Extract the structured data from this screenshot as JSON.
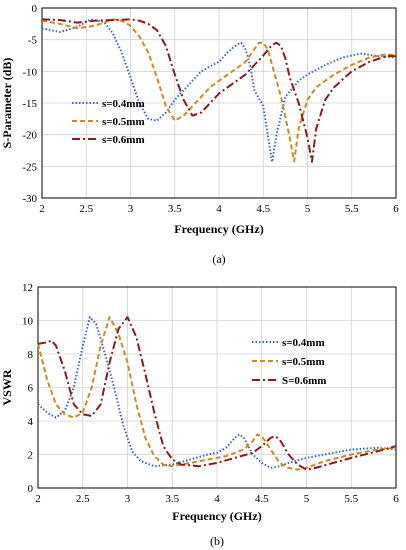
{
  "chart_data": [
    {
      "type": "line",
      "caption": "(a)",
      "title": "",
      "xlabel": "Frequency (GHz)",
      "ylabel": "S-Parameter (dB)",
      "xlim": [
        2,
        6
      ],
      "ylim": [
        -30,
        0
      ],
      "xticks": [
        "2",
        "2.5",
        "3",
        "3.5",
        "4",
        "4.5",
        "5",
        "5.5",
        "6"
      ],
      "yticks": [
        "0",
        "-5",
        "-10",
        "-15",
        "-20",
        "-25",
        "-30"
      ],
      "grid": true,
      "legend_position": "lower-left",
      "series": [
        {
          "name": "s=0.4mm",
          "color": "#3366cc",
          "dash": "dotted",
          "x": [
            2.0,
            2.2,
            2.4,
            2.55,
            2.7,
            2.8,
            2.9,
            3.0,
            3.1,
            3.2,
            3.3,
            3.4,
            3.5,
            3.6,
            3.7,
            3.8,
            3.9,
            4.0,
            4.1,
            4.2,
            4.25,
            4.3,
            4.35,
            4.4,
            4.5,
            4.55,
            4.6,
            4.65,
            4.75,
            4.9,
            5.0,
            5.2,
            5.4,
            5.6,
            5.8,
            6.0
          ],
          "y": [
            -3.2,
            -3.8,
            -3.0,
            -1.8,
            -2.2,
            -4.0,
            -7.0,
            -11.0,
            -15.0,
            -17.5,
            -17.8,
            -16.5,
            -14.5,
            -13.0,
            -11.5,
            -10.0,
            -9.2,
            -8.5,
            -7.0,
            -5.8,
            -5.5,
            -6.5,
            -9.0,
            -13.0,
            -15.5,
            -20.0,
            -24.3,
            -20.0,
            -14.0,
            -11.5,
            -10.5,
            -9.0,
            -7.8,
            -7.2,
            -7.6,
            -7.8
          ]
        },
        {
          "name": "s=0.5mm",
          "color": "#cc8a1e",
          "dash": "dashed",
          "x": [
            2.0,
            2.2,
            2.4,
            2.6,
            2.8,
            2.9,
            3.0,
            3.1,
            3.2,
            3.3,
            3.4,
            3.5,
            3.6,
            3.7,
            3.8,
            3.9,
            4.0,
            4.1,
            4.2,
            4.3,
            4.4,
            4.45,
            4.5,
            4.55,
            4.6,
            4.7,
            4.8,
            4.85,
            4.9,
            5.0,
            5.1,
            5.3,
            5.5,
            5.7,
            5.9,
            6.0
          ],
          "y": [
            -2.0,
            -2.5,
            -3.2,
            -2.8,
            -1.8,
            -2.0,
            -2.8,
            -4.5,
            -7.0,
            -11.0,
            -15.5,
            -17.8,
            -17.0,
            -15.5,
            -14.0,
            -12.5,
            -11.5,
            -10.5,
            -9.5,
            -8.5,
            -6.5,
            -5.5,
            -5.5,
            -6.5,
            -9.0,
            -14.0,
            -20.5,
            -24.2,
            -19.0,
            -14.5,
            -12.5,
            -10.5,
            -9.0,
            -7.8,
            -7.3,
            -7.5
          ]
        },
        {
          "name": "s=0.6mm",
          "color": "#8b1a1a",
          "dash": "dashdot",
          "x": [
            2.0,
            2.2,
            2.4,
            2.6,
            2.8,
            3.0,
            3.1,
            3.2,
            3.3,
            3.4,
            3.5,
            3.6,
            3.7,
            3.8,
            3.9,
            4.0,
            4.1,
            4.2,
            4.3,
            4.4,
            4.5,
            4.6,
            4.65,
            4.7,
            4.75,
            4.8,
            4.9,
            5.0,
            5.05,
            5.1,
            5.2,
            5.3,
            5.5,
            5.7,
            5.9,
            6.0
          ],
          "y": [
            -1.8,
            -1.9,
            -2.3,
            -2.0,
            -1.9,
            -1.8,
            -2.0,
            -2.5,
            -3.5,
            -6.0,
            -10.5,
            -14.5,
            -17.0,
            -16.5,
            -15.0,
            -13.5,
            -12.5,
            -11.5,
            -10.5,
            -9.0,
            -7.5,
            -5.8,
            -5.5,
            -6.0,
            -8.0,
            -11.0,
            -15.0,
            -20.5,
            -24.3,
            -19.0,
            -14.5,
            -12.5,
            -10.0,
            -8.5,
            -7.6,
            -7.6
          ]
        }
      ]
    },
    {
      "type": "line",
      "caption": "(b)",
      "title": "",
      "xlabel": "Frequency (GHz)",
      "ylabel": "VSWR",
      "xlim": [
        2,
        6
      ],
      "ylim": [
        0,
        12
      ],
      "xticks": [
        "2",
        "2.5",
        "3",
        "3.5",
        "4",
        "4.5",
        "5",
        "5.5",
        "6"
      ],
      "yticks": [
        "0",
        "2",
        "4",
        "6",
        "8",
        "10",
        "12"
      ],
      "grid": true,
      "legend_position": "right",
      "series": [
        {
          "name": "s=0.4mm",
          "color": "#3366cc",
          "dash": "dotted",
          "x": [
            2.0,
            2.1,
            2.2,
            2.3,
            2.4,
            2.5,
            2.58,
            2.65,
            2.75,
            2.85,
            2.95,
            3.05,
            3.15,
            3.3,
            3.5,
            3.7,
            3.9,
            4.0,
            4.1,
            4.2,
            4.25,
            4.3,
            4.4,
            4.5,
            4.6,
            4.7,
            4.8,
            5.0,
            5.2,
            5.5,
            5.8,
            6.0
          ],
          "y": [
            5.0,
            4.5,
            4.2,
            4.6,
            6.0,
            8.5,
            10.2,
            9.8,
            8.0,
            6.0,
            3.8,
            2.2,
            1.6,
            1.3,
            1.4,
            1.7,
            2.0,
            2.1,
            2.4,
            3.0,
            3.2,
            3.0,
            2.0,
            1.5,
            1.2,
            1.3,
            1.5,
            1.8,
            2.0,
            2.3,
            2.4,
            2.3
          ]
        },
        {
          "name": "s=0.5mm",
          "color": "#cc8a1e",
          "dash": "dashed",
          "x": [
            2.0,
            2.1,
            2.2,
            2.3,
            2.4,
            2.5,
            2.6,
            2.7,
            2.8,
            2.9,
            3.0,
            3.1,
            3.2,
            3.3,
            3.4,
            3.5,
            3.7,
            3.9,
            4.1,
            4.3,
            4.4,
            4.45,
            4.5,
            4.6,
            4.7,
            4.8,
            4.9,
            5.0,
            5.2,
            5.5,
            5.8,
            6.0
          ],
          "y": [
            8.6,
            6.5,
            5.0,
            4.4,
            4.2,
            4.5,
            6.0,
            8.5,
            10.2,
            9.2,
            7.5,
            5.0,
            3.0,
            1.9,
            1.4,
            1.3,
            1.5,
            1.7,
            1.9,
            2.3,
            2.8,
            3.2,
            3.1,
            2.3,
            1.5,
            1.2,
            1.1,
            1.2,
            1.6,
            2.0,
            2.3,
            2.4
          ]
        },
        {
          "name": "S=0.6mm",
          "color": "#8b1a1a",
          "dash": "dashdot",
          "x": [
            2.0,
            2.1,
            2.15,
            2.2,
            2.3,
            2.4,
            2.5,
            2.6,
            2.7,
            2.8,
            2.9,
            3.0,
            3.1,
            3.2,
            3.3,
            3.4,
            3.5,
            3.6,
            3.8,
            4.0,
            4.2,
            4.4,
            4.5,
            4.6,
            4.65,
            4.7,
            4.8,
            4.9,
            5.0,
            5.1,
            5.3,
            5.5,
            5.8,
            6.0
          ],
          "y": [
            8.6,
            8.7,
            8.8,
            8.5,
            7.0,
            5.0,
            4.4,
            4.3,
            5.0,
            7.5,
            9.5,
            10.2,
            9.0,
            6.8,
            4.5,
            2.5,
            1.7,
            1.4,
            1.3,
            1.5,
            1.8,
            2.1,
            2.5,
            3.0,
            3.1,
            2.9,
            2.0,
            1.4,
            1.1,
            1.2,
            1.5,
            1.8,
            2.2,
            2.5
          ]
        }
      ]
    }
  ]
}
